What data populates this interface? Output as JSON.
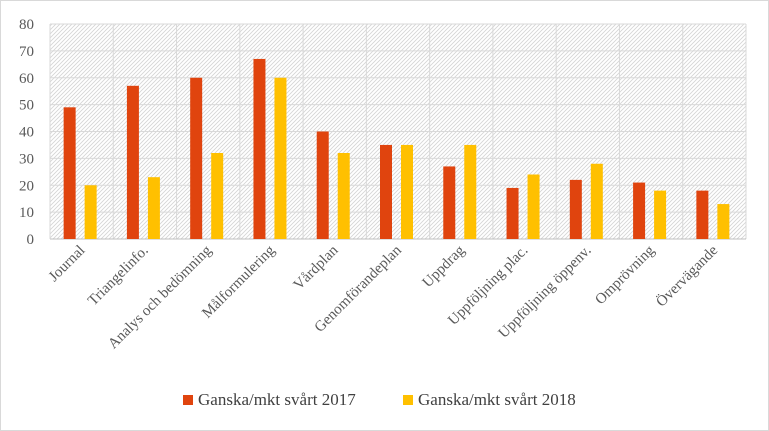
{
  "chart_data": {
    "type": "bar",
    "title": "",
    "xlabel": "",
    "ylabel": "",
    "ylim": [
      0,
      80
    ],
    "yticks": [
      0,
      10,
      20,
      30,
      40,
      50,
      60,
      70,
      80
    ],
    "grid": true,
    "legend_position": "bottom",
    "categories": [
      "Journal",
      "Triangelinfo.",
      "Analys och bedömning",
      "Målformulering",
      "Vårdplan",
      "Genomförandeplan",
      "Uppdrag",
      "Uppföljning plac.",
      "Uppföljning öppenv.",
      "Omprövning",
      "Övervägande"
    ],
    "series": [
      {
        "name": "Ganska/mkt svårt 2017",
        "color": "#e0440e",
        "values": [
          49,
          57,
          60,
          67,
          40,
          35,
          27,
          19,
          22,
          21,
          18
        ]
      },
      {
        "name": "Ganska/mkt svårt 2018",
        "color": "#ffc000",
        "values": [
          20,
          23,
          32,
          60,
          32,
          35,
          35,
          24,
          28,
          18,
          13
        ]
      }
    ]
  }
}
